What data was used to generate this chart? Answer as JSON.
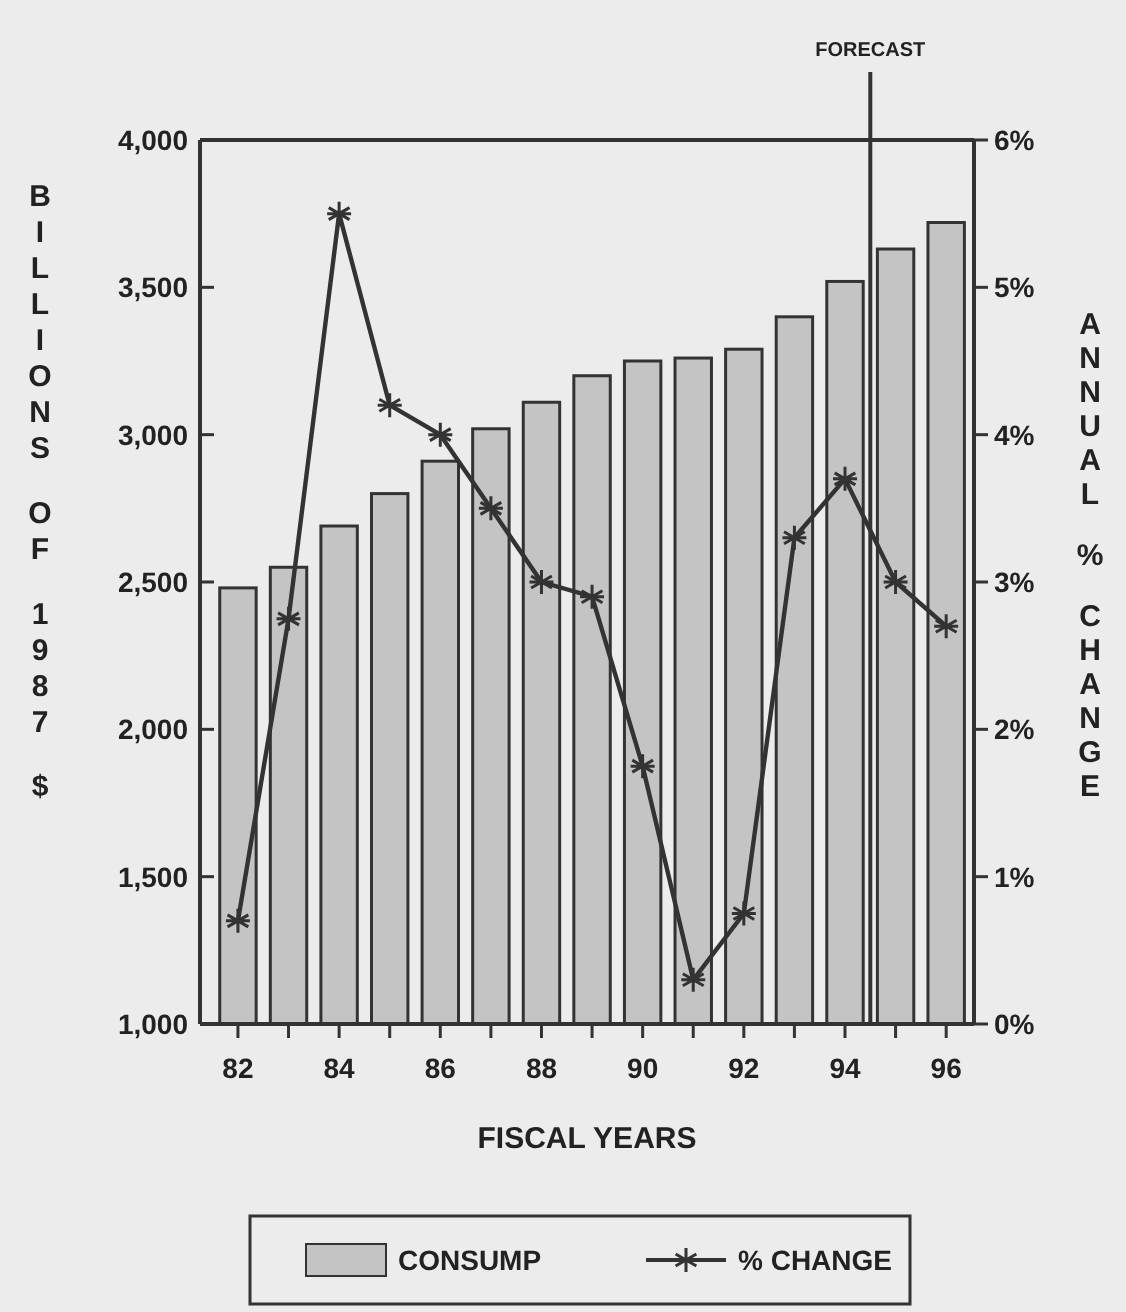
{
  "chart_data": {
    "type": "bar",
    "xlabel": "FISCAL YEARS",
    "ylabel": "BILLIONS OF 1987 $",
    "y2label": "ANNUAL % CHANGE",
    "x": [
      82,
      83,
      84,
      85,
      86,
      87,
      88,
      89,
      90,
      91,
      92,
      93,
      94,
      95,
      96
    ],
    "xlim": [
      81.25,
      96.55
    ],
    "xticks": [
      82,
      {
        "value": 83,
        "label": null
      },
      84,
      {
        "value": 85,
        "label": null
      },
      86,
      {
        "value": 87,
        "label": null
      },
      88,
      {
        "value": 89,
        "label": null
      },
      90,
      {
        "value": 91,
        "label": null
      },
      92,
      {
        "value": 93,
        "label": null
      },
      94,
      {
        "value": 95,
        "label": null
      },
      96
    ],
    "ylim": [
      1000,
      4000
    ],
    "yticks": [
      {
        "value": 1000,
        "label": "1,000"
      },
      {
        "value": 1500,
        "label": "1,500"
      },
      {
        "value": 2000,
        "label": "2,000"
      },
      {
        "value": 2500,
        "label": "2,500"
      },
      {
        "value": 3000,
        "label": "3,000"
      },
      {
        "value": 3500,
        "label": "3,500"
      },
      {
        "value": 4000,
        "label": "4,000"
      }
    ],
    "y2lim": [
      0,
      6
    ],
    "y2ticks": [
      {
        "value": 0,
        "label": "0%"
      },
      {
        "value": 1,
        "label": "1%"
      },
      {
        "value": 2,
        "label": "2%"
      },
      {
        "value": 3,
        "label": "3%"
      },
      {
        "value": 4,
        "label": "4%"
      },
      {
        "value": 5,
        "label": "5%"
      },
      {
        "value": 6,
        "label": "6%"
      }
    ],
    "series": [
      {
        "name": "CONSUMP",
        "color": "#c4c4c4",
        "values": [
          2480,
          2550,
          2690,
          2800,
          2910,
          3020,
          3110,
          3200,
          3250,
          3260,
          3290,
          3400,
          3520,
          3630,
          3720
        ]
      },
      {
        "name": "% CHANGE",
        "type": "line",
        "axis": "y2",
        "color": "#333333",
        "values": [
          0.7,
          2.75,
          5.5,
          4.2,
          4.0,
          3.5,
          3.0,
          2.9,
          1.75,
          0.3,
          0.75,
          3.3,
          3.7,
          3.0,
          2.7
        ]
      }
    ],
    "ref_lines": [
      {
        "axis": "x",
        "value": 94.5,
        "label": "FORECAST",
        "color": "#333333"
      }
    ],
    "marker": "cross",
    "legend": "bottom"
  }
}
